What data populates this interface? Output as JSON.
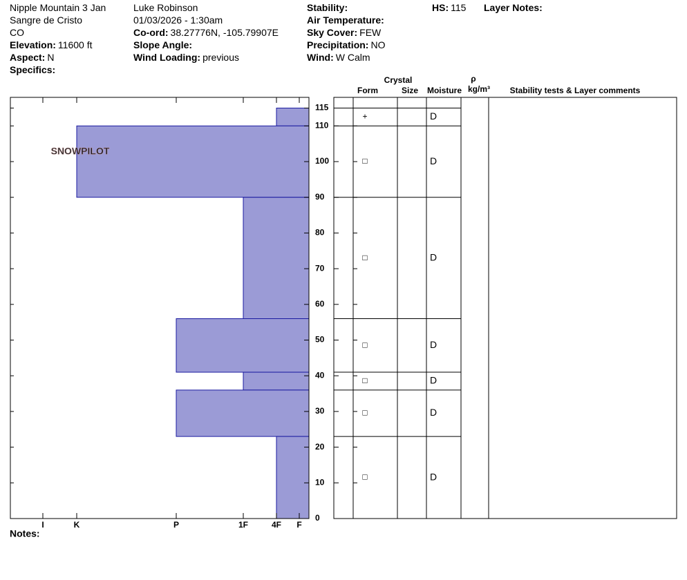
{
  "header": {
    "columns": [
      [
        {
          "text": "Nipple Mountain 3 Jan"
        },
        {
          "text": "Sangre de Cristo"
        },
        {
          "text": "CO"
        },
        {
          "label": "Elevation:",
          "value": "11600 ft"
        },
        {
          "label": "Aspect:",
          "value": "N"
        },
        {
          "label": "Specifics:"
        }
      ],
      [
        {
          "text": "Luke Robinson"
        },
        {
          "text": "01/03/2026 - 1:30am"
        },
        {
          "label": "Co-ord:",
          "value": "38.27776N, -105.79907E"
        },
        {
          "label": "Slope Angle:"
        },
        {
          "label": "Wind Loading:",
          "value": "previous"
        }
      ],
      [
        {
          "label": "Stability:"
        },
        {
          "label": "Air Temperature:"
        },
        {
          "label": "Sky Cover:",
          "value": "FEW"
        },
        {
          "label": "Precipitation:",
          "value": "NO"
        },
        {
          "label": "Wind:",
          "value": "W Calm"
        }
      ],
      [
        {
          "label": "HS:",
          "value": "115"
        }
      ],
      [
        {
          "label": "Layer Notes:"
        }
      ]
    ]
  },
  "logo": "SNOWPILOT",
  "chart_data": {
    "type": "snow-profile",
    "ylim": [
      0,
      118
    ],
    "yticks": [
      0,
      10,
      20,
      30,
      40,
      50,
      60,
      70,
      80,
      90,
      100,
      110,
      115
    ],
    "xticks": [
      {
        "value": 6,
        "label": "I"
      },
      {
        "value": 5,
        "label": "K"
      },
      {
        "value": 4,
        "label": "P"
      },
      {
        "value": 3,
        "label": "1F"
      },
      {
        "value": 2,
        "label": "4F"
      },
      {
        "value": 1,
        "label": "F"
      }
    ],
    "color": "#9b9bd6",
    "layers": [
      {
        "top": 115,
        "bottom": 110,
        "hardness": 2,
        "form": "+",
        "moisture": "D"
      },
      {
        "top": 110,
        "bottom": 90,
        "hardness": 5,
        "form": "□",
        "moisture": "D"
      },
      {
        "top": 90,
        "bottom": 56,
        "hardness": 3,
        "form": "□",
        "moisture": "D"
      },
      {
        "top": 56,
        "bottom": 41,
        "hardness": 4,
        "form": "□",
        "moisture": "D"
      },
      {
        "top": 41,
        "bottom": 36,
        "hardness": 3,
        "form": "□",
        "moisture": "D"
      },
      {
        "top": 36,
        "bottom": 23,
        "hardness": 4,
        "form": "□",
        "moisture": "D"
      },
      {
        "top": 23,
        "bottom": 0,
        "hardness": 2,
        "form": "□",
        "moisture": "D"
      }
    ]
  },
  "table_header": {
    "group": "Crystal",
    "form": "Form",
    "size": "Size",
    "moisture": "Moisture",
    "density_symbol": "ρ",
    "density_unit": "kg/m³",
    "comments": "Stability tests & Layer comments"
  },
  "notes": "Notes:"
}
